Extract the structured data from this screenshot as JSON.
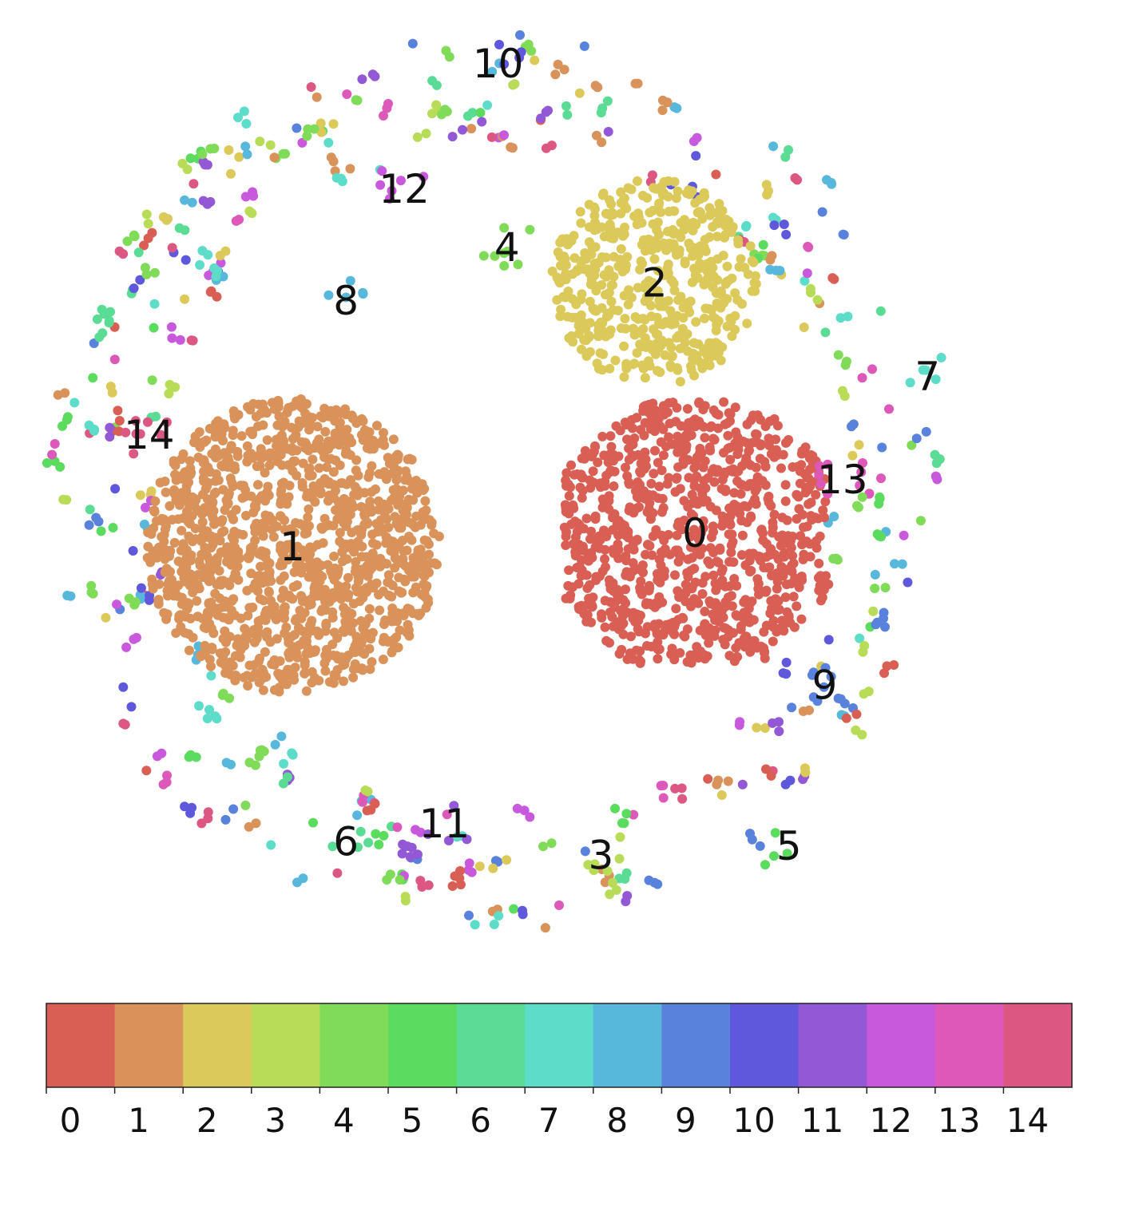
{
  "chart_data": {
    "type": "scatter",
    "title": "",
    "xlabel": "",
    "ylabel": "",
    "grid": false,
    "legend": "colorbar-bottom",
    "cluster_labels": [
      "0",
      "1",
      "2",
      "3",
      "4",
      "5",
      "6",
      "7",
      "8",
      "9",
      "10",
      "11",
      "12",
      "13",
      "14"
    ],
    "colors": [
      "#d95f55",
      "#d9935a",
      "#dbc95a",
      "#b8dc58",
      "#80dc58",
      "#5cdc5e",
      "#5bdc94",
      "#5cdcc9",
      "#58b8dc",
      "#5882dc",
      "#5f58dc",
      "#9358d6",
      "#c858dc",
      "#dc58b9",
      "#dc5882"
    ],
    "colorbar": {
      "ticks": [
        "0",
        "1",
        "2",
        "3",
        "4",
        "5",
        "6",
        "7",
        "8",
        "9",
        "10",
        "11",
        "12",
        "13",
        "14"
      ]
    },
    "main_clusters": [
      {
        "label": "0",
        "points": 1100,
        "center": [
          0.45,
          0.12
        ],
        "radius": 0.34,
        "shape": "hexagon"
      },
      {
        "label": "1",
        "points": 1300,
        "center": [
          -0.45,
          0.15
        ],
        "radius": 0.33,
        "shape": "circle"
      },
      {
        "label": "2",
        "points": 500,
        "center": [
          0.36,
          -0.44
        ],
        "radius": 0.23,
        "shape": "circle"
      }
    ],
    "small_clusters": [
      {
        "label": "3",
        "center": [
          0.24,
          0.84
        ]
      },
      {
        "label": "4",
        "center": [
          0.03,
          -0.52
        ]
      },
      {
        "label": "5",
        "center": [
          0.66,
          0.82
        ]
      },
      {
        "label": "6",
        "center": [
          -0.33,
          0.81
        ]
      },
      {
        "label": "7",
        "center": [
          0.97,
          -0.23
        ]
      },
      {
        "label": "8",
        "center": [
          -0.33,
          -0.4
        ]
      },
      {
        "label": "9",
        "center": [
          0.74,
          0.46
        ]
      },
      {
        "label": "10",
        "center": [
          0.01,
          -0.93
        ]
      },
      {
        "label": "11",
        "center": [
          -0.11,
          0.77
        ]
      },
      {
        "label": "12",
        "center": [
          -0.2,
          -0.65
        ]
      },
      {
        "label": "13",
        "center": [
          0.78,
          0.0
        ]
      },
      {
        "label": "14",
        "center": [
          -0.77,
          -0.1
        ]
      }
    ],
    "ring_points": 300,
    "ring_radius": [
      0.75,
      1.0
    ]
  }
}
